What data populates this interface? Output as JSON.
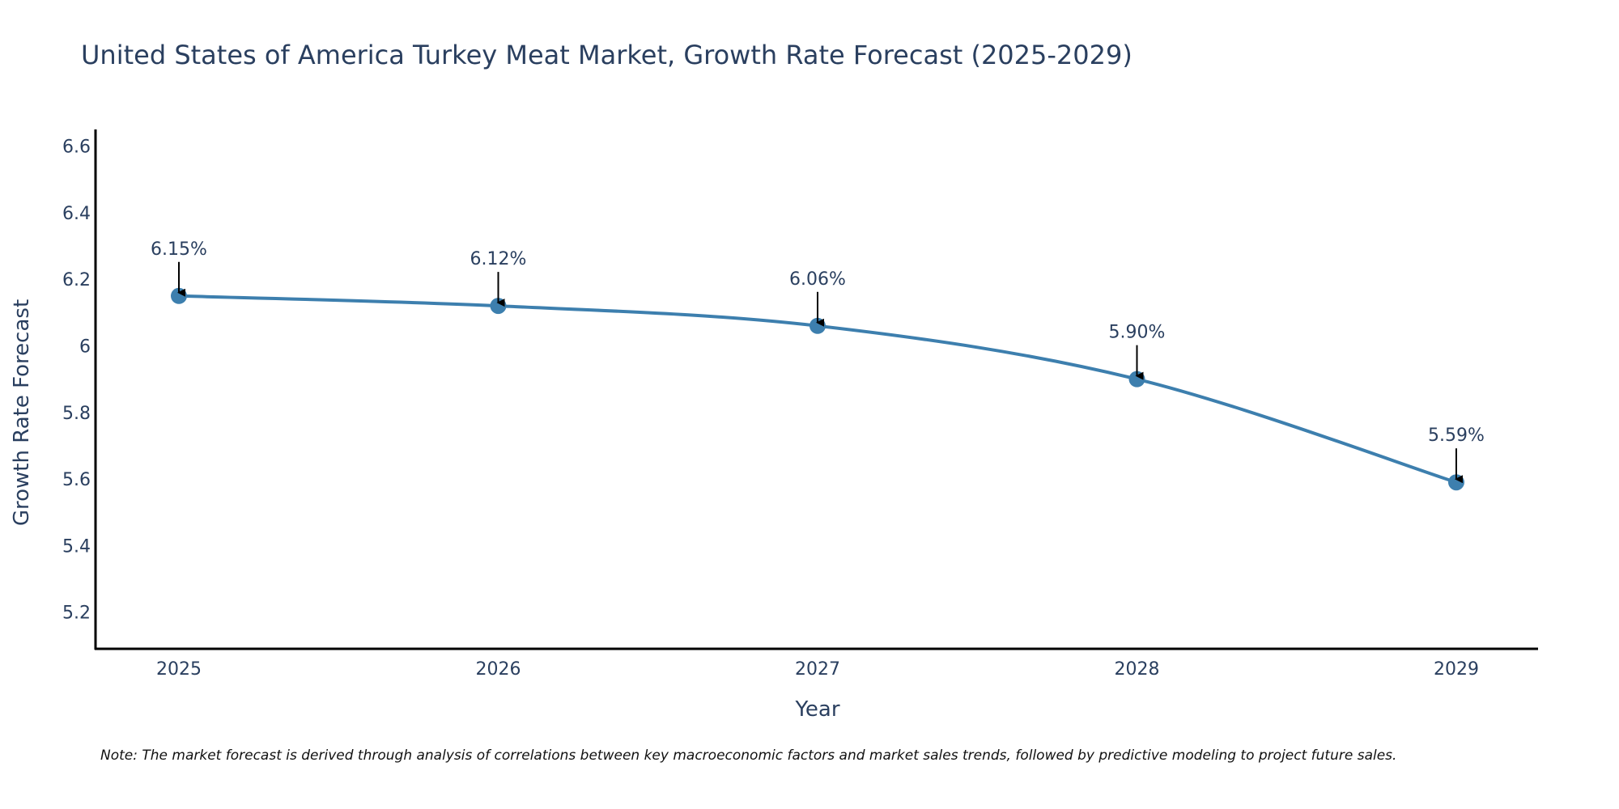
{
  "chart_data": {
    "type": "line",
    "title": "United States of America Turkey Meat Market, Growth Rate Forecast (2025-2029)",
    "xlabel": "Year",
    "ylabel": "Growth Rate Forecast",
    "categories": [
      "2025",
      "2026",
      "2027",
      "2028",
      "2029"
    ],
    "series": [
      {
        "name": "Growth Rate Forecast",
        "values": [
          6.15,
          6.12,
          6.06,
          5.9,
          5.59
        ]
      }
    ],
    "data_labels": [
      "6.15%",
      "6.12%",
      "6.06%",
      "5.90%",
      "5.59%"
    ],
    "yticks": [
      5.2,
      5.4,
      5.6,
      5.8,
      6,
      6.2,
      6.4,
      6.6
    ],
    "ytick_labels": [
      "5.2",
      "5.4",
      "5.6",
      "5.8",
      "6",
      "6.2",
      "6.4",
      "6.6"
    ],
    "ylim": [
      5.09,
      6.65
    ],
    "grid": false,
    "line_color": "#3d7fae",
    "note": "Note: The market forecast is derived through analysis of correlations between key macroeconomic factors and market sales trends, followed by predictive modeling to project future sales."
  }
}
